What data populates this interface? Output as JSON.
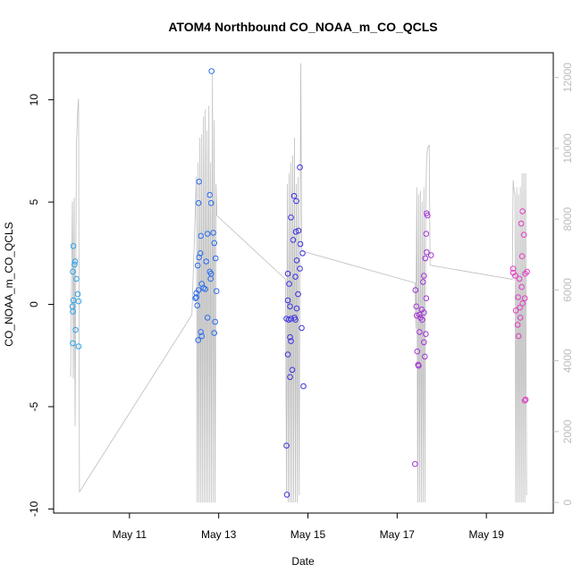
{
  "chart_data": {
    "type": "scatter",
    "title": "ATOM4 Northbound CO_NOAA_m_CO_QCLS",
    "xlabel": "Date",
    "ylabel": "CO_NOAA_m_CO_QCLS",
    "x_units": "days in May (fractional)",
    "xlim": [
      9.3,
      20.5
    ],
    "ylim": [
      -10.2,
      12.3
    ],
    "x_ticks": [
      11,
      13,
      15,
      17,
      19
    ],
    "x_tick_labels": [
      "May 11",
      "May 13",
      "May 15",
      "May 17",
      "May 19"
    ],
    "y_ticks": [
      -10,
      -5,
      0,
      5,
      10
    ],
    "y_tick_labels": [
      "-10",
      "-5",
      "0",
      "5",
      "10"
    ],
    "y2_ticks": [
      0,
      2000,
      4000,
      6000,
      8000,
      10000,
      12000
    ],
    "y2_tick_labels": [
      "0",
      "2000",
      "4000",
      "6000",
      "8000",
      "10000",
      "12000"
    ],
    "y2lim": [
      -300,
      12700
    ],
    "y2_color": "#bdbdbd",
    "grid": false,
    "legend": "none",
    "colors": {
      "flight1": "#29a3ea",
      "flight2": "#2a6cf0",
      "flight3": "#3b32e0",
      "flight4": "#a235d6",
      "flight5": "#e23cc6",
      "altitude_line": "#bdbdbd",
      "axis": "#000000"
    },
    "series": [
      {
        "color": "#29a3ea",
        "points": [
          [
            9.74,
            2.85
          ],
          [
            9.73,
            1.6
          ],
          [
            9.77,
            1.95
          ],
          [
            9.78,
            2.1
          ],
          [
            9.81,
            1.25
          ],
          [
            9.74,
            0.2
          ],
          [
            9.72,
            -0.1
          ],
          [
            9.73,
            -0.35
          ],
          [
            9.84,
            0.5
          ],
          [
            9.86,
            0.15
          ],
          [
            9.79,
            -1.25
          ],
          [
            9.73,
            -1.9
          ],
          [
            9.86,
            -2.05
          ]
        ]
      },
      {
        "color": "#2a6cf0",
        "points": [
          [
            12.84,
            11.4
          ],
          [
            12.56,
            6.0
          ],
          [
            12.55,
            4.95
          ],
          [
            12.8,
            5.35
          ],
          [
            12.83,
            4.95
          ],
          [
            12.6,
            3.35
          ],
          [
            12.75,
            3.45
          ],
          [
            12.88,
            3.5
          ],
          [
            12.9,
            3.0
          ],
          [
            12.59,
            2.5
          ],
          [
            12.56,
            2.3
          ],
          [
            12.72,
            2.1
          ],
          [
            12.93,
            2.25
          ],
          [
            12.53,
            1.9
          ],
          [
            12.8,
            1.6
          ],
          [
            12.83,
            1.5
          ],
          [
            12.82,
            1.25
          ],
          [
            12.62,
            1.0
          ],
          [
            12.5,
            0.55
          ],
          [
            12.55,
            0.7
          ],
          [
            12.66,
            0.8
          ],
          [
            12.7,
            0.75
          ],
          [
            12.95,
            0.65
          ],
          [
            12.48,
            0.3
          ],
          [
            12.5,
            0.35
          ],
          [
            12.52,
            -0.05
          ],
          [
            12.75,
            -0.65
          ],
          [
            12.92,
            -0.85
          ],
          [
            12.6,
            -1.35
          ],
          [
            12.62,
            -1.55
          ],
          [
            12.9,
            -1.4
          ],
          [
            12.54,
            -1.75
          ]
        ]
      },
      {
        "color": "#3b32e0",
        "points": [
          [
            14.82,
            6.7
          ],
          [
            14.69,
            5.3
          ],
          [
            14.74,
            5.05
          ],
          [
            14.62,
            4.25
          ],
          [
            14.73,
            3.55
          ],
          [
            14.79,
            3.6
          ],
          [
            14.67,
            3.15
          ],
          [
            14.83,
            2.95
          ],
          [
            14.88,
            2.5
          ],
          [
            14.75,
            2.15
          ],
          [
            14.82,
            1.75
          ],
          [
            14.55,
            1.5
          ],
          [
            14.72,
            1.35
          ],
          [
            14.58,
            1.0
          ],
          [
            14.78,
            0.5
          ],
          [
            14.55,
            0.2
          ],
          [
            14.6,
            -0.1
          ],
          [
            14.75,
            -0.2
          ],
          [
            14.52,
            -0.7
          ],
          [
            14.57,
            -0.75
          ],
          [
            14.62,
            -0.7
          ],
          [
            14.7,
            -0.65
          ],
          [
            14.72,
            -0.75
          ],
          [
            14.86,
            -1.15
          ],
          [
            14.6,
            -1.6
          ],
          [
            14.62,
            -1.8
          ],
          [
            14.55,
            -2.45
          ],
          [
            14.65,
            -3.2
          ],
          [
            14.6,
            -3.55
          ],
          [
            14.9,
            -4.0
          ],
          [
            14.52,
            -6.9
          ],
          [
            14.53,
            -9.3
          ]
        ]
      },
      {
        "color": "#a235d6",
        "points": [
          [
            17.66,
            4.45
          ],
          [
            17.68,
            4.35
          ],
          [
            17.65,
            3.45
          ],
          [
            17.66,
            2.55
          ],
          [
            17.76,
            2.4
          ],
          [
            17.63,
            2.25
          ],
          [
            17.6,
            1.4
          ],
          [
            17.58,
            1.1
          ],
          [
            17.41,
            0.7
          ],
          [
            17.65,
            0.3
          ],
          [
            17.43,
            -0.1
          ],
          [
            17.55,
            -0.25
          ],
          [
            17.6,
            -0.4
          ],
          [
            17.44,
            -0.55
          ],
          [
            17.5,
            -0.5
          ],
          [
            17.52,
            -0.65
          ],
          [
            17.56,
            -0.75
          ],
          [
            17.5,
            -1.35
          ],
          [
            17.64,
            -1.45
          ],
          [
            17.6,
            -1.85
          ],
          [
            17.45,
            -2.3
          ],
          [
            17.62,
            -2.55
          ],
          [
            17.47,
            -2.95
          ],
          [
            17.48,
            -3.0
          ],
          [
            17.4,
            -7.8
          ]
        ]
      },
      {
        "color": "#e23cc6",
        "points": [
          [
            19.81,
            4.55
          ],
          [
            19.78,
            3.95
          ],
          [
            19.84,
            3.4
          ],
          [
            19.8,
            2.35
          ],
          [
            19.6,
            1.75
          ],
          [
            19.6,
            1.55
          ],
          [
            19.91,
            1.6
          ],
          [
            19.87,
            1.5
          ],
          [
            19.65,
            1.4
          ],
          [
            19.74,
            1.25
          ],
          [
            19.79,
            0.85
          ],
          [
            19.71,
            0.35
          ],
          [
            19.86,
            0.3
          ],
          [
            19.81,
            0.05
          ],
          [
            19.75,
            -0.15
          ],
          [
            19.66,
            -0.3
          ],
          [
            19.76,
            -0.65
          ],
          [
            19.7,
            -1.0
          ],
          [
            19.72,
            -1.55
          ],
          [
            19.88,
            -4.65
          ],
          [
            19.86,
            -4.7
          ]
        ]
      }
    ],
    "altitude_series": {
      "color": "#bdbdbd",
      "points": [
        [
          9.68,
          3550
        ],
        [
          9.72,
          8500
        ],
        [
          9.74,
          3500
        ],
        [
          9.76,
          8600
        ],
        [
          9.78,
          2150
        ],
        [
          9.81,
          10100
        ],
        [
          9.84,
          11100
        ],
        [
          9.86,
          11400
        ],
        [
          9.88,
          300
        ],
        [
          12.4,
          5300
        ],
        [
          12.5,
          9200
        ],
        [
          12.52,
          0
        ],
        [
          12.54,
          9600
        ],
        [
          12.56,
          0
        ],
        [
          12.58,
          10300
        ],
        [
          12.6,
          0
        ],
        [
          12.62,
          10400
        ],
        [
          12.64,
          0
        ],
        [
          12.66,
          10900
        ],
        [
          12.68,
          0
        ],
        [
          12.7,
          11100
        ],
        [
          12.72,
          0
        ],
        [
          12.74,
          10500
        ],
        [
          12.76,
          0
        ],
        [
          12.78,
          11200
        ],
        [
          12.8,
          0
        ],
        [
          12.82,
          9600
        ],
        [
          12.84,
          0
        ],
        [
          12.86,
          12100
        ],
        [
          12.88,
          0
        ],
        [
          12.9,
          10800
        ],
        [
          12.92,
          0
        ],
        [
          12.94,
          9000
        ],
        [
          12.96,
          8100
        ],
        [
          14.5,
          6300
        ],
        [
          14.52,
          300
        ],
        [
          14.54,
          9000
        ],
        [
          14.56,
          0
        ],
        [
          14.58,
          9300
        ],
        [
          14.6,
          0
        ],
        [
          14.62,
          9600
        ],
        [
          14.64,
          0
        ],
        [
          14.66,
          9800
        ],
        [
          14.68,
          0
        ],
        [
          14.7,
          10300
        ],
        [
          14.72,
          0
        ],
        [
          14.74,
          9000
        ],
        [
          14.76,
          0
        ],
        [
          14.78,
          9200
        ],
        [
          14.8,
          200
        ],
        [
          14.84,
          12400
        ],
        [
          14.86,
          7100
        ],
        [
          17.4,
          6200
        ],
        [
          17.42,
          4900
        ],
        [
          17.44,
          8900
        ],
        [
          17.46,
          0
        ],
        [
          17.48,
          8700
        ],
        [
          17.5,
          0
        ],
        [
          17.52,
          8800
        ],
        [
          17.54,
          0
        ],
        [
          17.56,
          8500
        ],
        [
          17.58,
          0
        ],
        [
          17.6,
          8900
        ],
        [
          17.62,
          0
        ],
        [
          17.64,
          8400
        ],
        [
          17.66,
          9700
        ],
        [
          17.68,
          10000
        ],
        [
          17.72,
          10100
        ],
        [
          17.74,
          6700
        ],
        [
          19.58,
          6300
        ],
        [
          19.6,
          9100
        ],
        [
          19.62,
          8800
        ],
        [
          19.64,
          8700
        ],
        [
          19.66,
          0
        ],
        [
          19.68,
          8900
        ],
        [
          19.7,
          0
        ],
        [
          19.72,
          8700
        ],
        [
          19.74,
          0
        ],
        [
          19.76,
          8900
        ],
        [
          19.78,
          0
        ],
        [
          19.8,
          9300
        ],
        [
          19.82,
          0
        ],
        [
          19.84,
          9300
        ],
        [
          19.86,
          0
        ],
        [
          19.88,
          9300
        ],
        [
          19.9,
          200
        ]
      ]
    }
  }
}
